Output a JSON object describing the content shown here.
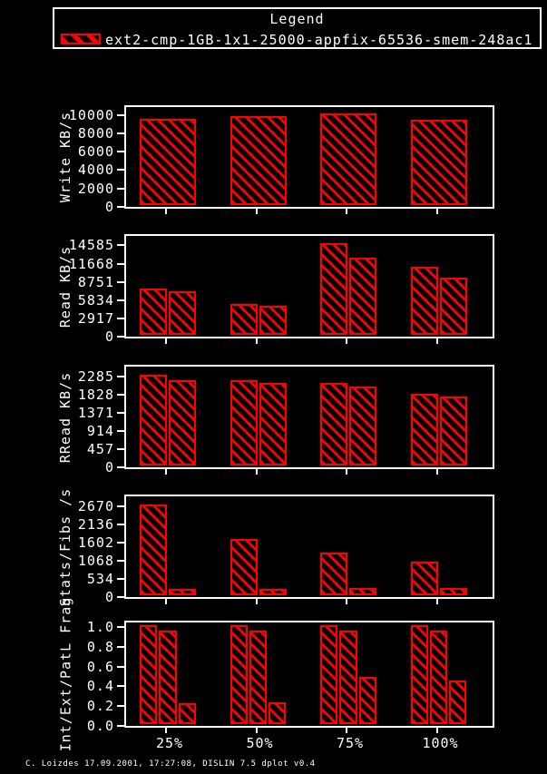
{
  "page": {
    "background": "#000000",
    "foreground": "#ffffff",
    "accent": "#ff0000"
  },
  "legend": {
    "title": "Legend",
    "entry": "ext2-cmp-1GB-1x1-25000-appfix-65536-smem-248ac1",
    "swatch_icon": "red-hatched-bar-swatch"
  },
  "xaxis": {
    "labels": [
      "25%",
      "50%",
      "75%",
      "100%"
    ]
  },
  "footer": {
    "credit": "C. Loizdes 17.09.2001, 17:27:08, DISLIN 7.5 dplot v0.4"
  },
  "chart_data": [
    {
      "type": "bar",
      "ylabel": "Write KB/s",
      "categories": [
        "25%",
        "50%",
        "75%",
        "100%"
      ],
      "ytick_values": [
        0,
        2000,
        4000,
        6000,
        8000,
        10000
      ],
      "ytick_labels": [
        "0",
        "2000",
        "4000",
        "6000",
        "8000",
        "10000"
      ],
      "ylim": [
        0,
        10860
      ],
      "grid": false,
      "groups": [
        [
          9400
        ],
        [
          9700
        ],
        [
          10000
        ],
        [
          9250
        ]
      ]
    },
    {
      "type": "bar",
      "ylabel": "Read KB/s",
      "categories": [
        "25%",
        "50%",
        "75%",
        "100%"
      ],
      "ytick_values": [
        0,
        2917,
        5834,
        8751,
        11668,
        14585
      ],
      "ytick_labels": [
        "0",
        "2917",
        "5834",
        "8751",
        "11668",
        "14585"
      ],
      "ylim": [
        0,
        16100
      ],
      "grid": false,
      "groups": [
        [
          7400,
          6950
        ],
        [
          5000,
          4600
        ],
        [
          14585,
          12330
        ],
        [
          10900,
          9200
        ]
      ]
    },
    {
      "type": "bar",
      "ylabel": "RRead KB/s",
      "categories": [
        "25%",
        "50%",
        "75%",
        "100%"
      ],
      "ytick_values": [
        0,
        457,
        914,
        1371,
        1828,
        2285
      ],
      "ytick_labels": [
        "0",
        "457",
        "914",
        "1371",
        "1828",
        "2285"
      ],
      "ylim": [
        0,
        2540
      ],
      "grid": false,
      "groups": [
        [
          2285,
          2150
        ],
        [
          2140,
          2080
        ],
        [
          2080,
          1980
        ],
        [
          1800,
          1750
        ]
      ]
    },
    {
      "type": "bar",
      "ylabel": "Stats/Fibs /s",
      "categories": [
        "25%",
        "50%",
        "75%",
        "100%"
      ],
      "ytick_values": [
        0,
        534,
        1068,
        1602,
        2136,
        2670
      ],
      "ytick_labels": [
        "0",
        "534",
        "1068",
        "1602",
        "2136",
        "2670"
      ],
      "ylim": [
        0,
        2970
      ],
      "grid": false,
      "groups": [
        [
          2670,
          200
        ],
        [
          1650,
          190
        ],
        [
          1270,
          210
        ],
        [
          1000,
          205
        ]
      ]
    },
    {
      "type": "bar",
      "ylabel": "Int/Ext/PatL Frag",
      "categories": [
        "25%",
        "50%",
        "75%",
        "100%"
      ],
      "ytick_values": [
        0,
        0.2,
        0.4,
        0.6,
        0.8,
        1.0
      ],
      "ytick_labels": [
        "0.0",
        "0.2",
        "0.4",
        "0.6",
        "0.8",
        "1.0"
      ],
      "ylim": [
        0,
        1.045
      ],
      "grid": false,
      "groups": [
        [
          1.0,
          0.94,
          0.21
        ],
        [
          1.0,
          0.94,
          0.22
        ],
        [
          1.0,
          0.94,
          0.48
        ],
        [
          1.0,
          0.94,
          0.44
        ]
      ]
    }
  ]
}
